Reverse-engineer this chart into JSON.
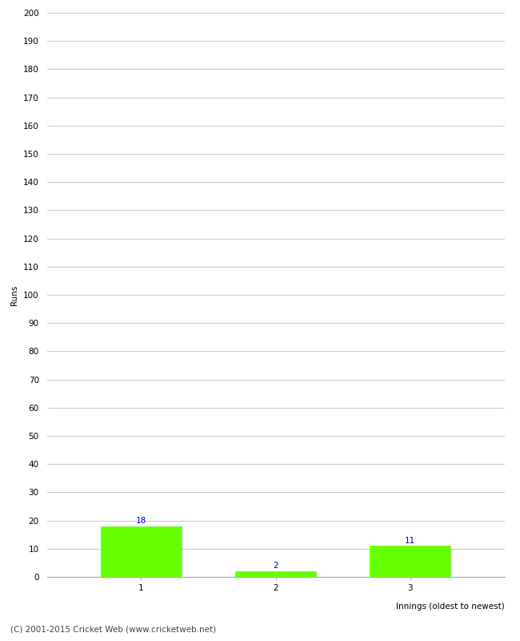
{
  "categories": [
    "1",
    "2",
    "3"
  ],
  "values": [
    18,
    2,
    11
  ],
  "bar_color": "#66ff00",
  "bar_edge_color": "#66ff00",
  "label_color": "#0000cc",
  "label_fontsize": 7.5,
  "ylabel": "Runs",
  "xlabel": "Innings (oldest to newest)",
  "ylim": [
    0,
    200
  ],
  "yticks": [
    0,
    10,
    20,
    30,
    40,
    50,
    60,
    70,
    80,
    90,
    100,
    110,
    120,
    130,
    140,
    150,
    160,
    170,
    180,
    190,
    200
  ],
  "grid_color": "#cccccc",
  "background_color": "#ffffff",
  "footer_text": "(C) 2001-2015 Cricket Web (www.cricketweb.net)",
  "footer_fontsize": 7.5,
  "footer_color": "#444444",
  "bar_width": 0.6,
  "tick_fontsize": 7.5,
  "ylabel_fontsize": 7.5,
  "xlabel_fontsize": 7.5
}
